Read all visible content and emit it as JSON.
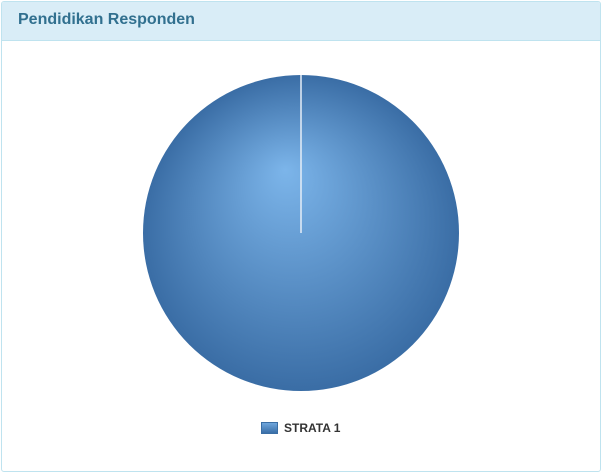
{
  "panel": {
    "title": "Pendidikan Responden"
  },
  "chart_data": {
    "type": "pie",
    "categories": [
      "STRATA 1"
    ],
    "values": [
      100
    ],
    "colors": [
      "#4f86c6"
    ],
    "legend": "bottom"
  }
}
